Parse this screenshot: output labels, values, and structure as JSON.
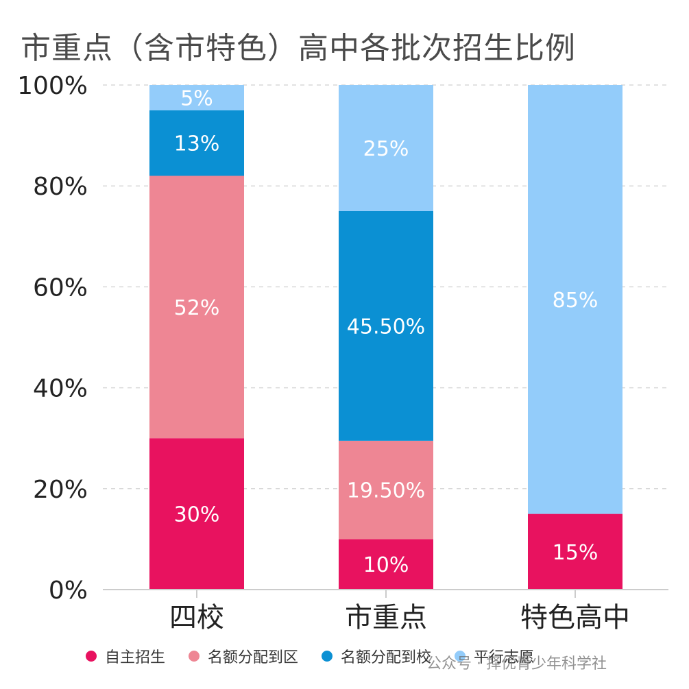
{
  "watermark": "公众号 · 择优青少年科学社",
  "chart_data": {
    "type": "bar",
    "stacked": true,
    "title": "市重点（含市特色）高中各批次招生比例",
    "categories": [
      "四校",
      "市重点",
      "特色高中"
    ],
    "ylim": [
      0,
      100
    ],
    "yticks": [
      "0%",
      "20%",
      "40%",
      "60%",
      "80%",
      "100%"
    ],
    "grid": true,
    "legend_position": "bottom",
    "series": [
      {
        "name": "自主招生",
        "color": "#e8125f",
        "values": [
          30,
          10,
          15
        ],
        "labels": [
          "30%",
          "10%",
          "15%"
        ]
      },
      {
        "name": "名额分配到区",
        "color": "#ee8694",
        "values": [
          52,
          19.5,
          0
        ],
        "labels": [
          "52%",
          "19.50%",
          ""
        ]
      },
      {
        "name": "名额分配到校",
        "color": "#0b90d3",
        "values": [
          13,
          45.5,
          0
        ],
        "labels": [
          "13%",
          "45.50%",
          ""
        ]
      },
      {
        "name": "平行志愿",
        "color": "#93ccfa",
        "values": [
          5,
          25,
          85
        ],
        "labels": [
          "5%",
          "25%",
          "85%"
        ]
      }
    ]
  }
}
